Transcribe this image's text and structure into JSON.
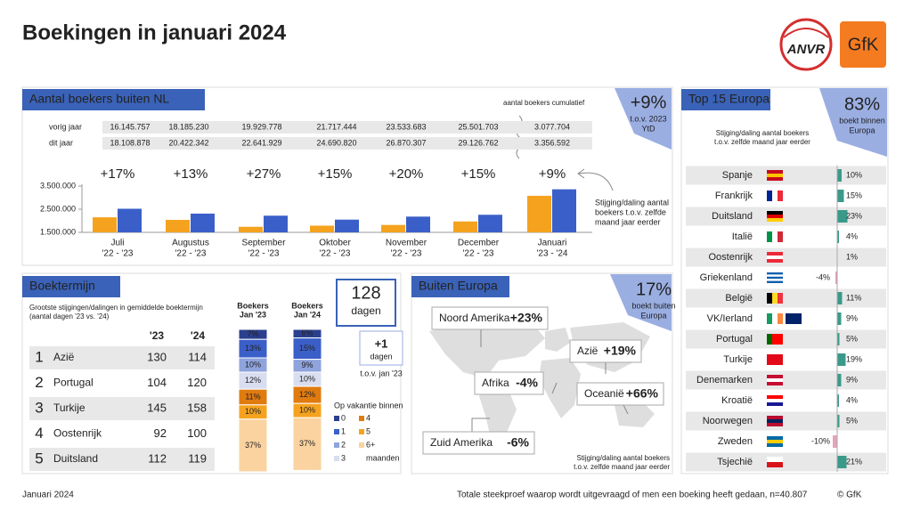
{
  "header": {
    "title": "Boekingen in januari 2024",
    "logos": [
      "ANVR",
      "GfK"
    ]
  },
  "chart_data": [
    {
      "type": "bar",
      "title": "Aantal boekers buiten NL",
      "categories": [
        "Juli",
        "Augustus",
        "September",
        "Oktober",
        "November",
        "December",
        "Januari"
      ],
      "periods": [
        "'22 - '23",
        "'22 - '23",
        "'22 - '23",
        "'22 - '23",
        "'22 - '23",
        "'22 - '23",
        "'23 - '24"
      ],
      "series": [
        {
          "name": "vorig jaar",
          "color": "#f5a31f",
          "values": [
            2150000,
            2040000,
            1740000,
            1790000,
            1820000,
            1970000,
            3080000
          ]
        },
        {
          "name": "dit jaar",
          "color": "#3b5fc9",
          "values": [
            2520000,
            2310000,
            2220000,
            2050000,
            2180000,
            2260000,
            3360000
          ]
        }
      ],
      "ylim": [
        1500000,
        3500000
      ],
      "yticks": [
        {
          "value": 1500000,
          "label": "1.500.000"
        },
        {
          "value": 2500000,
          "label": "2.500.000"
        },
        {
          "value": 3500000,
          "label": "3.500.000"
        }
      ],
      "changes": [
        "+17%",
        "+13%",
        "+27%",
        "+15%",
        "+20%",
        "+15%",
        "+9%"
      ],
      "cumulative": {
        "label": "aantal boekers cumulatief",
        "rows": [
          [
            "16.145.757",
            "18.185.230",
            "19.929.778",
            "21.717.444",
            "23.533.683",
            "25.501.703",
            "3.077.704"
          ],
          [
            "18.108.878",
            "20.422.342",
            "22.641.929",
            "24.690.820",
            "26.870.307",
            "29.126.762",
            "3.356.592"
          ]
        ]
      },
      "badge": {
        "value": "+9%",
        "lines": [
          "t.o.v. 2023",
          "YtD"
        ]
      },
      "annotation": [
        "Stijging/daling aantal",
        "boekers t.o.v. zelfde",
        "maand jaar eerder"
      ]
    },
    {
      "type": "stacked_bar",
      "title": "Boektermijn",
      "category_label": "Boekers",
      "categories": [
        "Jan '23",
        "Jan '24"
      ],
      "ylim": [
        0,
        100
      ],
      "series": [
        {
          "name": "0",
          "color": "#2b3f8f",
          "values": [
            7,
            6
          ],
          "value_labels": [
            "7%",
            "6%"
          ]
        },
        {
          "name": "1",
          "color": "#3b5fc9",
          "values": [
            13,
            15
          ],
          "value_labels": [
            "13%",
            "15%"
          ]
        },
        {
          "name": "2",
          "color": "#8fa3dc",
          "values": [
            10,
            9
          ],
          "value_labels": [
            "10%",
            "9%"
          ]
        },
        {
          "name": "3",
          "color": "#d8deef",
          "values": [
            12,
            10
          ],
          "value_labels": [
            "12%",
            "10%"
          ]
        },
        {
          "name": "4",
          "color": "#e07b10",
          "values": [
            11,
            12
          ],
          "value_labels": [
            "11%",
            "12%"
          ]
        },
        {
          "name": "5",
          "color": "#f5a31f",
          "values": [
            10,
            10
          ],
          "value_labels": [
            "10%",
            "10%"
          ]
        },
        {
          "name": "6+",
          "color": "#fad3a0",
          "values": [
            37,
            37
          ],
          "value_labels": [
            "37%",
            "37%"
          ]
        }
      ],
      "legend_title": "Op vakantie binnen",
      "legend_unit": "maanden",
      "table": {
        "subtitle": [
          "Grootste stijgingen/dalingen in gemiddelde boektermijn",
          "(aantal dagen '23 vs. '24)"
        ],
        "columns": [
          "'23",
          "'24"
        ],
        "rows": [
          [
            "1",
            "Azië",
            130,
            114
          ],
          [
            "2",
            "Portugal",
            104,
            120
          ],
          [
            "3",
            "Turkije",
            145,
            158
          ],
          [
            "4",
            "Oostenrijk",
            92,
            100
          ],
          [
            "5",
            "Duitsland",
            112,
            119
          ]
        ]
      },
      "badge": {
        "value": "128",
        "unit": "dagen",
        "change": "+1",
        "change_unit": "dagen",
        "note": "t.o.v. jan '23"
      }
    },
    {
      "type": "hbar",
      "title": "Top 15 Europa",
      "categories": [
        "Spanje",
        "Frankrijk",
        "Duitsland",
        "Italië",
        "Oostenrijk",
        "Griekenland",
        "België",
        "VK/Ierland",
        "Portugal",
        "Turkije",
        "Denemarken",
        "Kroatië",
        "Noorwegen",
        "Zweden",
        "Tsjechië"
      ],
      "values": [
        10,
        15,
        23,
        4,
        1,
        -4,
        11,
        9,
        5,
        19,
        9,
        4,
        5,
        -10,
        21
      ],
      "value_labels": [
        "10%",
        "15%",
        "23%",
        "4%",
        "1%",
        "-4%",
        "11%",
        "9%",
        "5%",
        "19%",
        "9%",
        "4%",
        "5%",
        "-10%",
        "21%"
      ],
      "color": "#3a9a8a",
      "negative_color": "#e6a3b8",
      "badge": {
        "value": "83%",
        "lines": [
          "boekt binnen",
          "Europa"
        ]
      },
      "note": [
        "Stijging/daling aantal boekers",
        "t.o.v. zelfde maand jaar eerder"
      ]
    }
  ],
  "buiten_europa": {
    "title": "Buiten Europa",
    "badge": {
      "value": "17%",
      "lines": [
        "boekt buiten",
        "Europa"
      ]
    },
    "regions": [
      {
        "name": "Noord Amerika",
        "change": "+23%"
      },
      {
        "name": "Azië",
        "change": "+19%"
      },
      {
        "name": "Afrika",
        "change": "-4%"
      },
      {
        "name": "Oceanië",
        "change": "+66%"
      },
      {
        "name": "Zuid Amerika",
        "change": "-6%"
      }
    ],
    "note": [
      "Stijging/daling aantal boekers",
      "t.o.v. zelfde maand jaar eerder"
    ]
  },
  "footer": {
    "date": "Januari 2024",
    "note": "Totale steekproef waarop wordt uitgevraagd of men een boeking heeft gedaan, n=40.807",
    "copyright": "© GfK"
  }
}
